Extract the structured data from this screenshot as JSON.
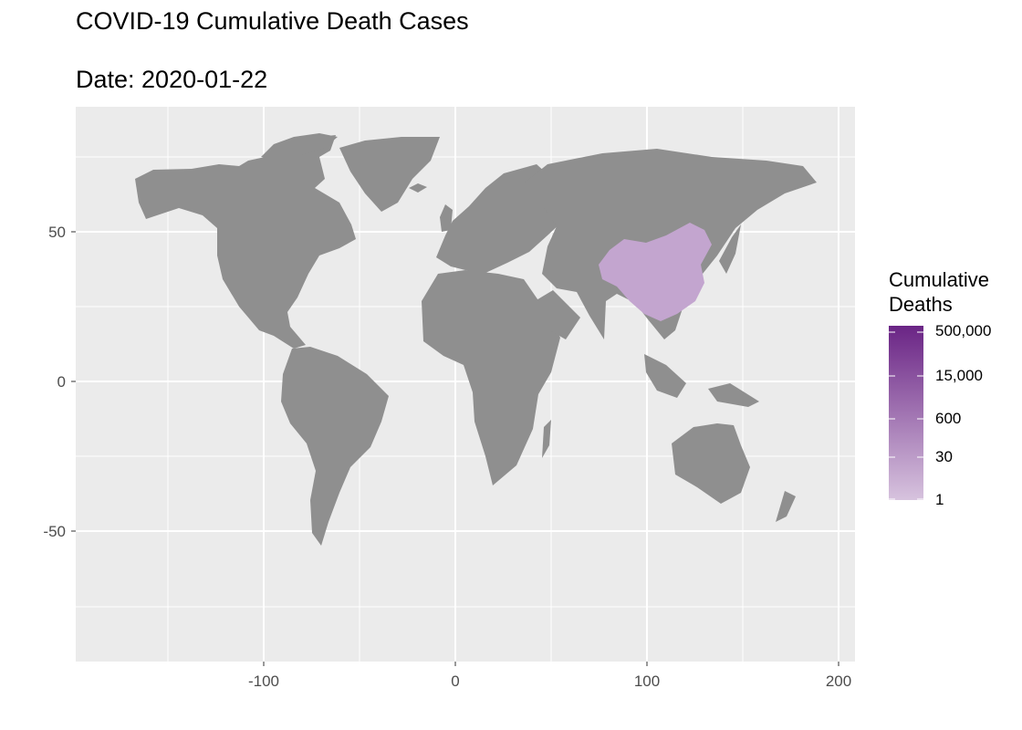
{
  "title": "COVID-19 Cumulative Death Cases",
  "subtitle": "Date: 2020-01-22",
  "colors": {
    "panel": "#ebebeb",
    "grid": "#ffffff",
    "land": "#8f8f8f",
    "highlight": "#c3a5cf",
    "scale_low": "#d7c3de",
    "scale_high": "#6a2485"
  },
  "chart_data": {
    "type": "choropleth",
    "map": "world",
    "x_ticks": [
      "-100",
      "0",
      "100",
      "200"
    ],
    "y_ticks": [
      "50",
      "0",
      "-50"
    ],
    "xlim": [
      -190,
      210
    ],
    "ylim": [
      -93,
      92
    ],
    "grid": true,
    "legend": {
      "title_line1": "Cumulative",
      "title_line2": "Deaths",
      "scale": "log",
      "labels": [
        "500,000",
        "15,000",
        "600",
        "30",
        "1"
      ],
      "placement": "right"
    },
    "regions": [
      {
        "name": "China",
        "deaths": 17
      }
    ]
  }
}
